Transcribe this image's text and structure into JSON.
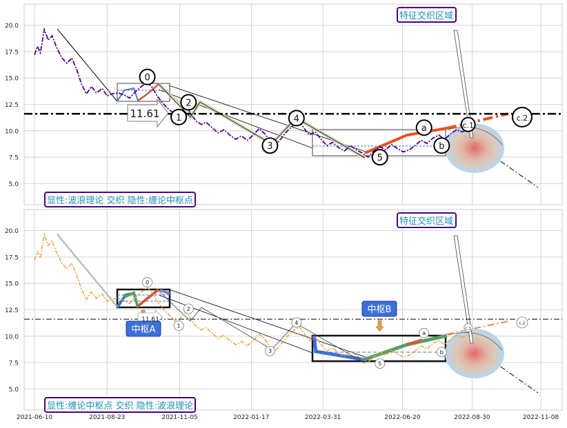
{
  "chart_data": [
    {
      "type": "line",
      "panel": "top",
      "caption": "显性:波浪理论 交织 隐性:缠论中枢点",
      "zone_label": "特征交织区域",
      "ylim": [
        3,
        22
      ],
      "yticks": [
        "5.0",
        "7.5",
        "10.0",
        "12.5",
        "15.0",
        "17.5",
        "20.0"
      ],
      "grid": true,
      "hline": {
        "value": 11.61,
        "label": "11.61",
        "style": "dash-dot"
      },
      "price_color": "#4b0082",
      "price_series": [
        [
          "2021-06-10",
          17.2
        ],
        [
          "2021-06-13",
          18.0
        ],
        [
          "2021-06-16",
          17.4
        ],
        [
          "2021-06-20",
          19.6
        ],
        [
          "2021-06-24",
          18.6
        ],
        [
          "2021-06-28",
          19.0
        ],
        [
          "2021-07-03",
          17.8
        ],
        [
          "2021-07-08",
          16.9
        ],
        [
          "2021-07-13",
          16.4
        ],
        [
          "2021-07-18",
          16.9
        ],
        [
          "2021-07-23",
          15.8
        ],
        [
          "2021-07-28",
          14.4
        ],
        [
          "2021-08-02",
          13.5
        ],
        [
          "2021-08-07",
          14.2
        ],
        [
          "2021-08-12",
          13.6
        ],
        [
          "2021-08-18",
          14.0
        ],
        [
          "2021-08-23",
          13.3
        ],
        [
          "2021-08-28",
          13.5
        ],
        [
          "2021-09-03",
          13.6
        ],
        [
          "2021-09-09",
          13.4
        ],
        [
          "2021-09-15",
          13.1
        ],
        [
          "2021-09-21",
          13.7
        ],
        [
          "2021-09-27",
          14.2
        ],
        [
          "2021-10-03",
          14.6
        ],
        [
          "2021-10-08",
          14.1
        ],
        [
          "2021-10-13",
          13.3
        ],
        [
          "2021-10-18",
          12.7
        ],
        [
          "2021-10-23",
          12.2
        ],
        [
          "2021-10-28",
          11.8
        ],
        [
          "2021-11-02",
          11.3
        ],
        [
          "2021-11-07",
          11.9
        ],
        [
          "2021-11-12",
          12.3
        ],
        [
          "2021-11-17",
          11.5
        ],
        [
          "2021-11-22",
          10.9
        ],
        [
          "2021-11-27",
          10.6
        ],
        [
          "2021-12-02",
          10.8
        ],
        [
          "2021-12-08",
          10.3
        ],
        [
          "2021-12-14",
          9.8
        ],
        [
          "2021-12-20",
          10.1
        ],
        [
          "2021-12-26",
          9.6
        ],
        [
          "2022-01-01",
          9.2
        ],
        [
          "2022-01-07",
          9.5
        ],
        [
          "2022-01-13",
          9.1
        ],
        [
          "2022-01-19",
          9.6
        ],
        [
          "2022-01-25",
          10.2
        ],
        [
          "2022-01-31",
          9.7
        ],
        [
          "2022-02-05",
          9.0
        ],
        [
          "2022-02-10",
          8.6
        ],
        [
          "2022-02-15",
          9.1
        ],
        [
          "2022-02-20",
          9.7
        ],
        [
          "2022-02-25",
          10.2
        ],
        [
          "2022-03-02",
          10.6
        ],
        [
          "2022-03-07",
          10.9
        ],
        [
          "2022-03-12",
          10.2
        ],
        [
          "2022-03-17",
          9.6
        ],
        [
          "2022-03-23",
          9.9
        ],
        [
          "2022-03-29",
          9.2
        ],
        [
          "2022-04-04",
          8.6
        ],
        [
          "2022-04-10",
          8.9
        ],
        [
          "2022-04-16",
          8.4
        ],
        [
          "2022-04-22",
          8.1
        ],
        [
          "2022-04-28",
          8.6
        ],
        [
          "2022-05-04",
          8.2
        ],
        [
          "2022-05-10",
          7.9
        ],
        [
          "2022-05-16",
          7.5
        ],
        [
          "2022-05-22",
          8.1
        ],
        [
          "2022-05-28",
          8.5
        ],
        [
          "2022-06-03",
          8.2
        ],
        [
          "2022-06-09",
          8.7
        ],
        [
          "2022-06-15",
          8.3
        ],
        [
          "2022-06-21",
          8.0
        ],
        [
          "2022-06-27",
          8.2
        ],
        [
          "2022-07-03",
          8.6
        ],
        [
          "2022-07-09",
          9.1
        ],
        [
          "2022-07-15",
          8.8
        ],
        [
          "2022-07-21",
          9.3
        ],
        [
          "2022-07-27",
          9.6
        ],
        [
          "2022-08-02",
          9.2
        ],
        [
          "2022-08-08",
          9.7
        ],
        [
          "2022-08-14",
          10.1
        ],
        [
          "2022-08-20",
          9.9
        ],
        [
          "2022-08-26",
          10.1
        ]
      ],
      "wave_points": [
        {
          "label": "0",
          "x": "2021-10-03",
          "y": 15.1
        },
        {
          "label": "1",
          "x": "2021-11-04",
          "y": 11.3
        },
        {
          "label": "2",
          "x": "2021-11-14",
          "y": 12.7
        },
        {
          "label": "3",
          "x": "2022-02-05",
          "y": 8.6
        },
        {
          "label": "4",
          "x": "2022-03-04",
          "y": 11.2
        },
        {
          "label": "5",
          "x": "2022-05-28",
          "y": 7.5
        },
        {
          "label": "a",
          "x": "2022-07-12",
          "y": 10.3
        },
        {
          "label": "b",
          "x": "2022-07-30",
          "y": 8.6
        },
        {
          "label": "c.1",
          "x": "2022-08-26",
          "y": 10.6
        },
        {
          "label": "c.2",
          "x": "2022-10-20",
          "y": 11.3
        }
      ]
    },
    {
      "type": "line",
      "panel": "bottom",
      "caption": "显性:缠论中枢点 交织 隐性:波浪理论",
      "zone_label": "特征交织区域",
      "ylim": [
        3,
        22
      ],
      "yticks": [
        "5.0",
        "7.5",
        "10.0",
        "12.5",
        "15.0",
        "17.5",
        "20.0"
      ],
      "xticks": [
        "2021-06-10",
        "2021-08-23",
        "2021-11-05",
        "2022-01-17",
        "2022-03-31",
        "2022-06-20",
        "2022-08-30",
        "2022-11-08"
      ],
      "grid": true,
      "hline": {
        "value": 11.61,
        "label": "11.61",
        "style": "dash-dot"
      },
      "price_color": "#e8a33a",
      "pivots": [
        {
          "label": "中枢A",
          "x_start": "2021-08-23",
          "x_end": "2021-11-05",
          "y_low": 12.6,
          "y_high": 14.5
        },
        {
          "label": "中枢B",
          "x_start": "2022-03-31",
          "x_end": "2022-08-26",
          "y_low": 7.6,
          "y_high": 10.2
        }
      ],
      "wave_points": [
        {
          "label": "0",
          "x": "2021-10-03",
          "y": 15.1
        },
        {
          "label": "1",
          "x": "2021-11-04",
          "y": 11.0
        },
        {
          "label": "2",
          "x": "2021-11-14",
          "y": 12.6
        },
        {
          "label": "3",
          "x": "2022-02-05",
          "y": 8.6
        },
        {
          "label": "4",
          "x": "2022-03-04",
          "y": 11.3
        },
        {
          "label": "5",
          "x": "2022-05-28",
          "y": 7.4
        },
        {
          "label": "a",
          "x": "2022-07-12",
          "y": 10.3
        },
        {
          "label": "b",
          "x": "2022-07-30",
          "y": 8.5
        },
        {
          "label": "c.1",
          "x": "2022-08-26",
          "y": 10.8
        },
        {
          "label": "c.2",
          "x": "2022-10-20",
          "y": 11.3
        }
      ]
    }
  ],
  "palette": {
    "grid": "#cccccc",
    "caption_border": "#4b0082",
    "caption_text": "#1f8fb5",
    "pivot_label_bg": "#3d6fd8",
    "price_top": "#4b0082",
    "price_bottom": "#e8a33a",
    "trend_orange": "#e8501a",
    "ellipse_outer": "#aed6f1",
    "ellipse_mid": "#e0b0a0",
    "ellipse_inner": "#e06060"
  }
}
